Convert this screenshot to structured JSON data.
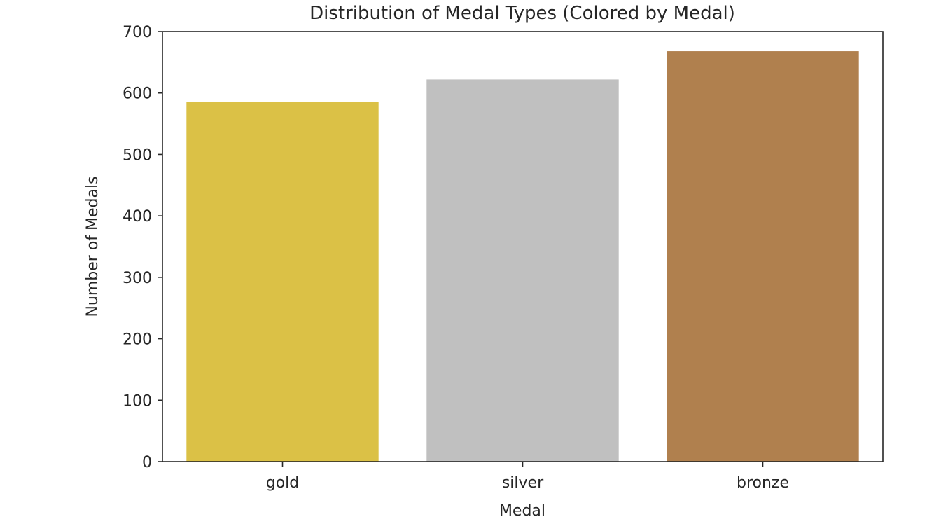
{
  "chart_data": {
    "type": "bar",
    "title": "Distribution of Medal Types (Colored by Medal)",
    "xlabel": "Medal",
    "ylabel": "Number of Medals",
    "categories": [
      "gold",
      "silver",
      "bronze"
    ],
    "values": [
      586,
      622,
      668
    ],
    "colors": [
      "#dbc146",
      "#c0c0c0",
      "#b0804e"
    ],
    "ylim": [
      0,
      700
    ],
    "yticks": [
      0,
      100,
      200,
      300,
      400,
      500,
      600,
      700
    ],
    "ytick_labels": [
      "0",
      "100",
      "200",
      "300",
      "400",
      "500",
      "600",
      "700"
    ],
    "grid": false,
    "legend": "none"
  }
}
